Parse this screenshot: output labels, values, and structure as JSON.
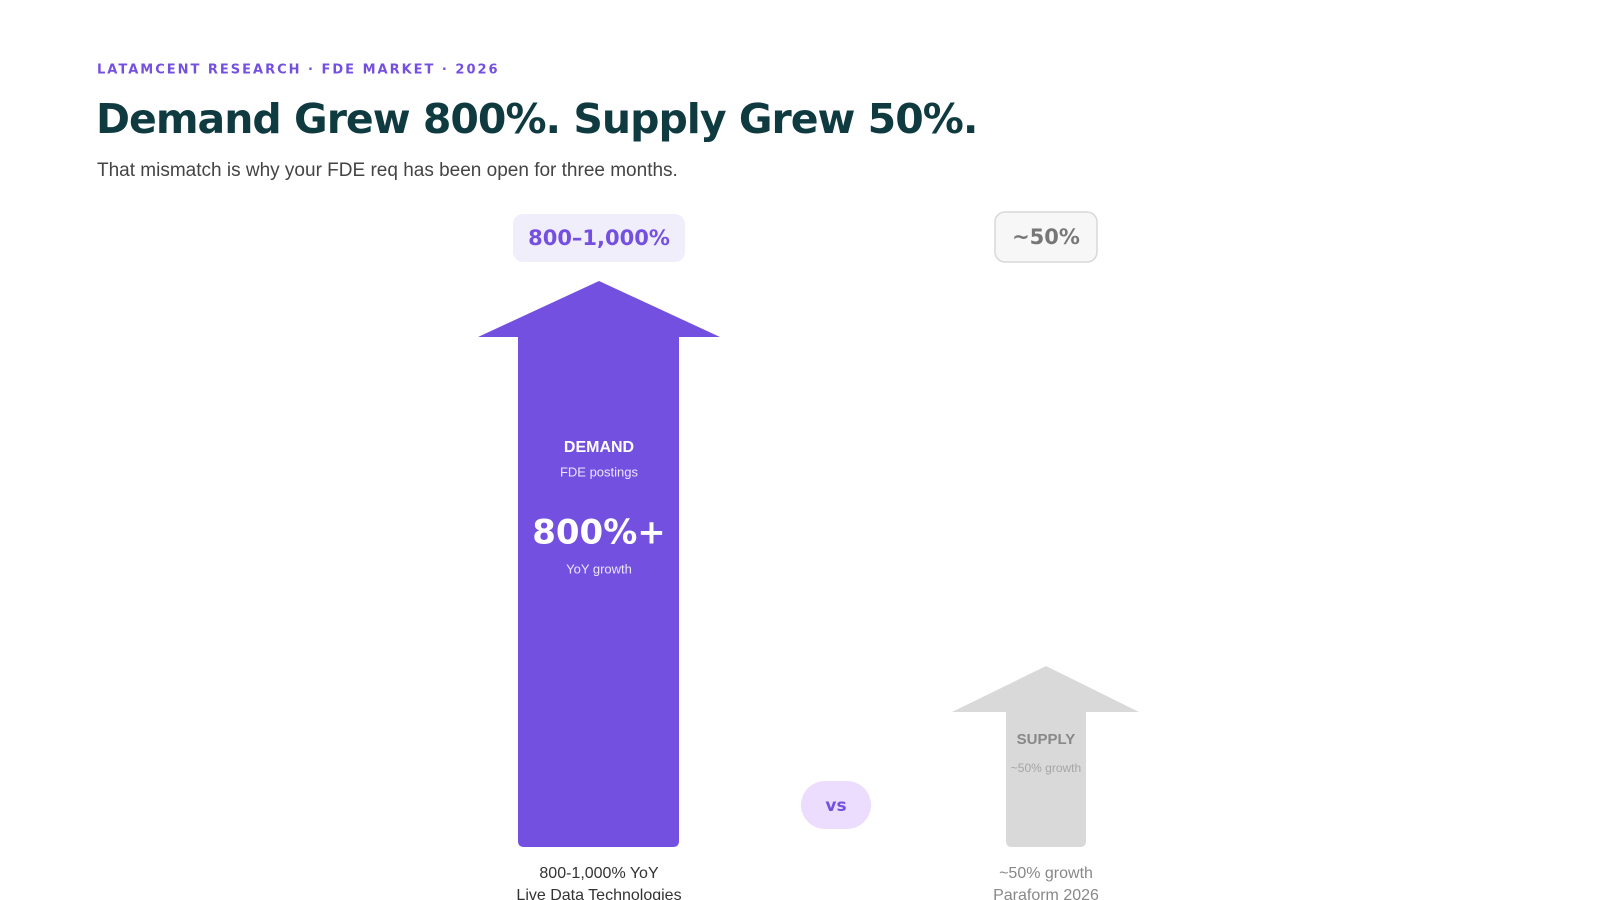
{
  "header": {
    "eyebrow": "LATAMCENT RESEARCH · FDE MARKET · 2026",
    "title": "Demand Grew 800%. Supply Grew 50%.",
    "subtitle": "That mismatch is why your FDE req has been open for three months."
  },
  "demand": {
    "badge": "800–1,000%",
    "label": "DEMAND",
    "sublabel": "FDE postings",
    "stat": "800%+",
    "stat_label": "YoY growth",
    "caption": "800-1,000% YoY",
    "source": "Live Data Technologies"
  },
  "vs": "vs",
  "supply": {
    "badge": "~50%",
    "label": "SUPPLY",
    "sublabel": "~50% growth",
    "caption": "~50% growth",
    "source": "Paraform 2026"
  }
}
